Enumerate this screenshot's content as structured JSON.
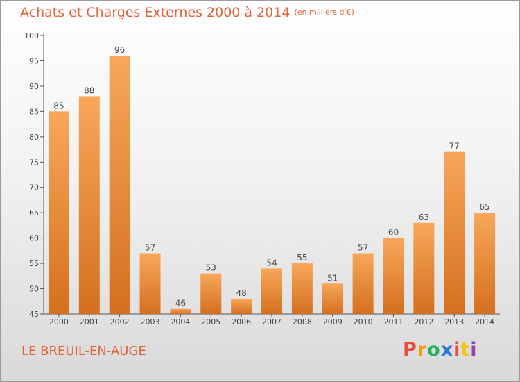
{
  "header": {
    "title": "Achats et Charges Externes 2000 à 2014",
    "unit": "(en milliers d'€)"
  },
  "footer": {
    "place": "LE BREUIL-EN-AUGE",
    "brand": "Proxiti"
  },
  "colors": {
    "accent": "#e0643a",
    "bar_top": "#f8a75a",
    "bar_bottom": "#d4701f",
    "brand_letters": [
      "#e94b3c",
      "#f39c12",
      "#27ae60",
      "#2d7bd0",
      "#e94b3c",
      "#f1c40f",
      "#8e44ad"
    ]
  },
  "chart_data": {
    "type": "bar",
    "title": "Achats et Charges Externes 2000 à 2014",
    "subtitle": "(en milliers d'€)",
    "xlabel": "",
    "ylabel": "",
    "categories": [
      "2000",
      "2001",
      "2002",
      "2003",
      "2004",
      "2005",
      "2006",
      "2007",
      "2008",
      "2009",
      "2010",
      "2011",
      "2012",
      "2013",
      "2014"
    ],
    "values": [
      85,
      88,
      96,
      57,
      46,
      53,
      48,
      54,
      55,
      51,
      57,
      60,
      63,
      77,
      65
    ],
    "ylim": [
      45,
      100
    ],
    "yticks": [
      45,
      50,
      55,
      60,
      65,
      70,
      75,
      80,
      85,
      90,
      95,
      100
    ],
    "grid": false,
    "data_labels": true
  }
}
